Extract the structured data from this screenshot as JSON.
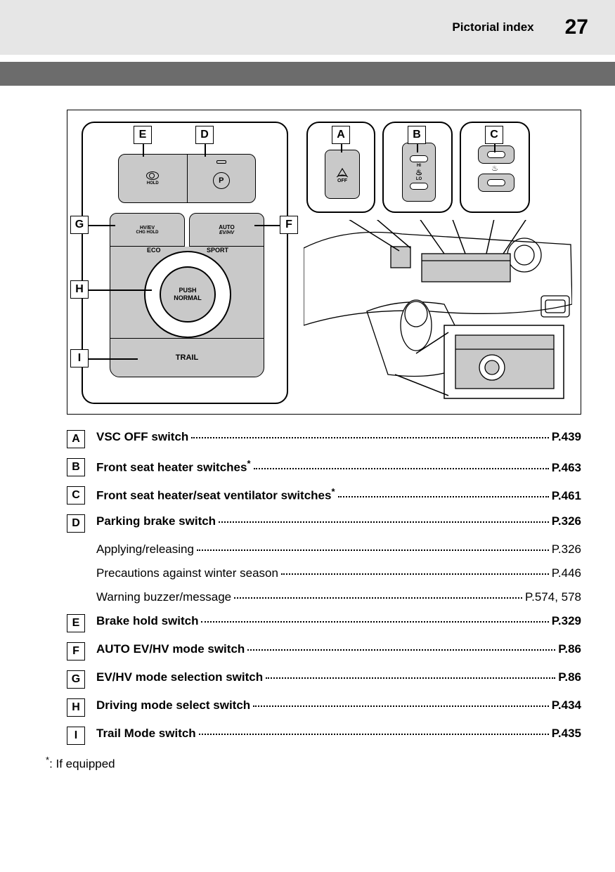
{
  "header": {
    "section": "Pictorial index",
    "page": "27"
  },
  "diagram": {
    "left_panel": {
      "hold_label": "HOLD",
      "park_icon": "Ⓟ",
      "ev_label": "HV/EV",
      "chg_label": "CHG HOLD",
      "auto_label": "AUTO",
      "evhv_label": "EV/HV",
      "eco": "ECO",
      "sport": "SPORT",
      "dial_push": "PUSH",
      "dial_normal": "NORMAL",
      "trail": "TRAIL"
    },
    "callout_a": {
      "off": "OFF"
    },
    "callout_b": {
      "hi": "HI",
      "lo": "LO"
    },
    "callout_b_seat": "⛐",
    "letters": {
      "A": "A",
      "B": "B",
      "C": "C",
      "D": "D",
      "E": "E",
      "F": "F",
      "G": "G",
      "H": "H",
      "I": "I"
    }
  },
  "items": [
    {
      "letter": "A",
      "title": "VSC OFF switch",
      "has_ast": false,
      "page": "P.439",
      "subs": []
    },
    {
      "letter": "B",
      "title": "Front seat heater switches",
      "has_ast": true,
      "page": "P.463",
      "subs": []
    },
    {
      "letter": "C",
      "title": "Front seat heater/seat ventilator switches",
      "has_ast": true,
      "page": "P.461",
      "subs": []
    },
    {
      "letter": "D",
      "title": "Parking brake switch",
      "has_ast": false,
      "page": "P.326",
      "subs": [
        {
          "title": "Applying/releasing",
          "page": "P.326"
        },
        {
          "title": "Precautions against winter season",
          "page": "P.446"
        },
        {
          "title": "Warning buzzer/message",
          "page": "P.574, 578"
        }
      ]
    },
    {
      "letter": "E",
      "title": "Brake hold switch",
      "has_ast": false,
      "page": "P.329",
      "subs": []
    },
    {
      "letter": "F",
      "title": "AUTO EV/HV mode switch",
      "has_ast": false,
      "page": "P.86",
      "subs": []
    },
    {
      "letter": "G",
      "title": "EV/HV mode selection switch",
      "has_ast": false,
      "page": "P.86",
      "subs": []
    },
    {
      "letter": "H",
      "title": "Driving mode select switch",
      "has_ast": false,
      "page": "P.434",
      "subs": []
    },
    {
      "letter": "I",
      "title": "Trail Mode switch",
      "has_ast": false,
      "page": "P.435",
      "subs": []
    }
  ],
  "footnote": ": If equipped"
}
